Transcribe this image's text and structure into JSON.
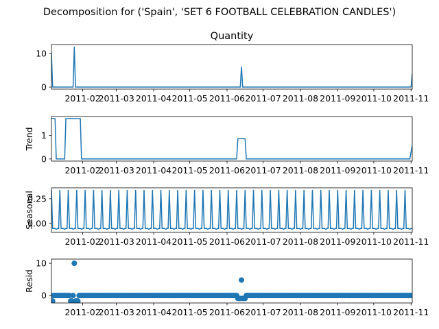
{
  "figure": {
    "suptitle": "Decomposition for ('Spain', 'SET 6 FOOTBALL CELEBRATION CANDLES')"
  },
  "chart_data": [
    {
      "type": "line",
      "panel": "observed",
      "title": "Quantity",
      "ylabel": "",
      "x_ticks": [
        "2011-02",
        "2011-03",
        "2011-04",
        "2011-05",
        "2011-06",
        "2011-07",
        "2011-08",
        "2011-09",
        "2011-10",
        "2011-11"
      ],
      "y_ticks": [
        "0",
        "10"
      ],
      "x": [
        "2011-01-06",
        "2011-01-07",
        "2011-01-24",
        "2011-01-25",
        "2011-01-26",
        "2011-06-12",
        "2011-06-13",
        "2011-06-14",
        "2011-11-01",
        "2011-11-02"
      ],
      "values": [
        10,
        0,
        0,
        12,
        0,
        0,
        6,
        0,
        0,
        4
      ],
      "xlim": [
        "2011-01-06",
        "2011-11-02"
      ],
      "ylim": [
        -0.6,
        12.6
      ]
    },
    {
      "type": "line",
      "panel": "trend",
      "title": "",
      "ylabel": "Trend",
      "x_ticks": [
        "2011-02",
        "2011-03",
        "2011-04",
        "2011-05",
        "2011-06",
        "2011-07",
        "2011-08",
        "2011-09",
        "2011-10",
        "2011-11"
      ],
      "y_ticks": [
        "0",
        "1"
      ],
      "x": [
        "2011-01-06",
        "2011-01-09",
        "2011-01-10",
        "2011-01-17",
        "2011-01-18",
        "2011-01-24",
        "2011-01-25",
        "2011-01-30",
        "2011-01-31",
        "2011-06-09",
        "2011-06-10",
        "2011-06-16",
        "2011-06-17",
        "2011-10-31",
        "2011-11-02"
      ],
      "values": [
        1.71,
        1.71,
        0,
        0,
        1.71,
        1.71,
        1.71,
        1.71,
        0,
        0,
        0.86,
        0.86,
        0,
        0,
        0.57
      ],
      "xlim": [
        "2011-01-06",
        "2011-11-02"
      ],
      "ylim": [
        -0.09,
        1.8
      ]
    },
    {
      "type": "line",
      "panel": "seasonal",
      "title": "",
      "ylabel": "Seasonal",
      "x_ticks": [
        "2011-02",
        "2011-03",
        "2011-04",
        "2011-05",
        "2011-06",
        "2011-07",
        "2011-08",
        "2011-09",
        "2011-10",
        "2011-11"
      ],
      "y_ticks": [
        "0.00",
        "0.25"
      ],
      "period_days": 7,
      "weekly_pattern": [
        0.34,
        -0.05,
        -0.05,
        -0.05,
        -0.06,
        -0.05,
        -0.05
      ],
      "xlim": [
        "2011-01-06",
        "2011-11-02"
      ],
      "ylim": [
        -0.09,
        0.36
      ]
    },
    {
      "type": "scatter",
      "panel": "resid",
      "title": "",
      "ylabel": "Resid",
      "x_ticks": [
        "2011-02",
        "2011-03",
        "2011-04",
        "2011-05",
        "2011-06",
        "2011-07",
        "2011-08",
        "2011-09",
        "2011-10",
        "2011-11"
      ],
      "y_ticks": [
        "0",
        "10"
      ],
      "baseline": 0,
      "outliers": [
        {
          "x": "2011-01-07",
          "y": -1.7
        },
        {
          "x": "2011-01-08",
          "y": 0
        },
        {
          "x": "2011-01-22",
          "y": -1.7
        },
        {
          "x": "2011-01-23",
          "y": -1.7
        },
        {
          "x": "2011-01-25",
          "y": 10
        },
        {
          "x": "2011-01-26",
          "y": -1.7
        },
        {
          "x": "2011-01-27",
          "y": -1.7
        },
        {
          "x": "2011-01-28",
          "y": -1.7
        },
        {
          "x": "2011-06-10",
          "y": -0.9
        },
        {
          "x": "2011-06-11",
          "y": -0.9
        },
        {
          "x": "2011-06-12",
          "y": -0.9
        },
        {
          "x": "2011-06-13",
          "y": 4.8
        },
        {
          "x": "2011-06-14",
          "y": -0.9
        },
        {
          "x": "2011-06-15",
          "y": -0.9
        },
        {
          "x": "2011-06-16",
          "y": -0.9
        }
      ],
      "xlim": [
        "2011-01-06",
        "2011-11-02"
      ],
      "ylim": [
        -2.3,
        11.3
      ]
    }
  ]
}
